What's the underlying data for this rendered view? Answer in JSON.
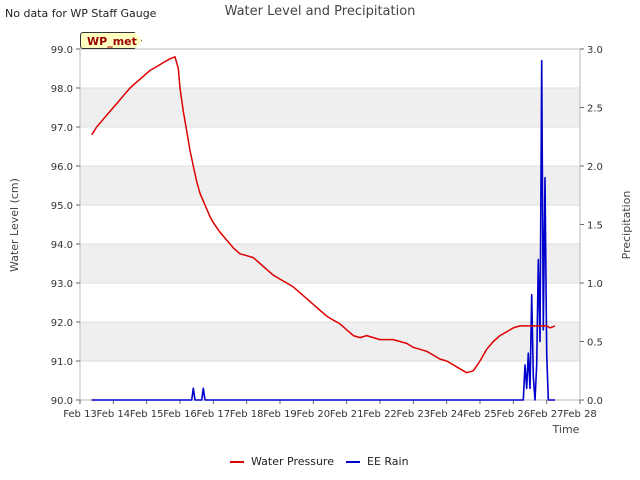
{
  "header": {
    "no_data_text": "No data for WP Staff Gauge",
    "badge": "WP_met"
  },
  "chart_data": {
    "type": "line",
    "title": "Water Level and Precipitation",
    "xlabel": "Time",
    "ylabel_left": "Water Level (cm)",
    "ylabel_right": "Precipitation",
    "x_ticks": [
      "Feb 13",
      "Feb 14",
      "Feb 15",
      "Feb 16",
      "Feb 17",
      "Feb 18",
      "Feb 19",
      "Feb 20",
      "Feb 21",
      "Feb 22",
      "Feb 23",
      "Feb 24",
      "Feb 25",
      "Feb 26",
      "Feb 27",
      "Feb 28"
    ],
    "xlim": [
      13,
      28
    ],
    "ylim_left": [
      90.0,
      99.0
    ],
    "ylim_right": [
      0.0,
      3.0
    ],
    "y_left_ticks": [
      "90.0",
      "91.0",
      "92.0",
      "93.0",
      "94.0",
      "95.0",
      "96.0",
      "97.0",
      "98.0",
      "99.0"
    ],
    "y_right_ticks": [
      "0.0",
      "0.5",
      "1.0",
      "1.5",
      "2.0",
      "2.5",
      "3.0"
    ],
    "banded_background": true,
    "legend_position": "bottom-center",
    "series": [
      {
        "name": "Water Pressure",
        "color": "#dd0000",
        "axis": "left",
        "x": [
          13.35,
          13.5,
          13.7,
          13.9,
          14.1,
          14.3,
          14.5,
          14.7,
          14.9,
          15.1,
          15.3,
          15.5,
          15.7,
          15.85,
          15.95,
          16.0,
          16.1,
          16.2,
          16.3,
          16.4,
          16.5,
          16.6,
          16.7,
          16.8,
          16.9,
          17.0,
          17.2,
          17.4,
          17.6,
          17.8,
          18.0,
          18.2,
          18.4,
          18.6,
          18.8,
          19.0,
          19.2,
          19.4,
          19.6,
          19.8,
          20.0,
          20.2,
          20.4,
          20.6,
          20.8,
          21.0,
          21.2,
          21.4,
          21.6,
          21.8,
          22.0,
          22.2,
          22.4,
          22.6,
          22.8,
          23.0,
          23.2,
          23.4,
          23.6,
          23.8,
          24.0,
          24.2,
          24.4,
          24.6,
          24.8,
          25.0,
          25.2,
          25.4,
          25.6,
          25.8,
          26.0,
          26.2,
          26.4,
          26.6,
          26.8,
          27.0,
          27.1,
          27.25
        ],
        "y": [
          96.8,
          97.0,
          97.2,
          97.4,
          97.6,
          97.8,
          98.0,
          98.15,
          98.3,
          98.45,
          98.55,
          98.65,
          98.75,
          98.8,
          98.5,
          98.0,
          97.4,
          96.9,
          96.4,
          96.0,
          95.6,
          95.3,
          95.1,
          94.9,
          94.7,
          94.55,
          94.3,
          94.1,
          93.9,
          93.75,
          93.7,
          93.65,
          93.5,
          93.35,
          93.2,
          93.1,
          93.0,
          92.9,
          92.75,
          92.6,
          92.45,
          92.3,
          92.15,
          92.05,
          91.95,
          91.8,
          91.65,
          91.6,
          91.65,
          91.6,
          91.55,
          91.55,
          91.55,
          91.5,
          91.45,
          91.35,
          91.3,
          91.25,
          91.15,
          91.05,
          91.0,
          90.9,
          90.8,
          90.7,
          90.75,
          91.0,
          91.3,
          91.5,
          91.65,
          91.75,
          91.85,
          91.9,
          91.9,
          91.9,
          91.9,
          91.9,
          91.85,
          91.9
        ]
      },
      {
        "name": "EE Rain",
        "color": "#0000cc",
        "axis": "right",
        "x": [
          13.35,
          16.35,
          16.4,
          16.45,
          16.65,
          16.7,
          16.75,
          26.3,
          26.35,
          26.4,
          26.45,
          26.5,
          26.55,
          26.6,
          26.65,
          26.7,
          26.75,
          26.8,
          26.85,
          26.9,
          26.95,
          27.0,
          27.05,
          27.1,
          27.15,
          27.2,
          27.25
        ],
        "y": [
          0.0,
          0.0,
          0.1,
          0.0,
          0.0,
          0.1,
          0.0,
          0.0,
          0.3,
          0.1,
          0.4,
          0.1,
          0.9,
          0.2,
          0.0,
          0.3,
          1.2,
          0.5,
          2.9,
          0.6,
          1.9,
          0.4,
          0.0,
          0.0,
          0.0,
          0.0,
          0.0
        ]
      }
    ]
  }
}
